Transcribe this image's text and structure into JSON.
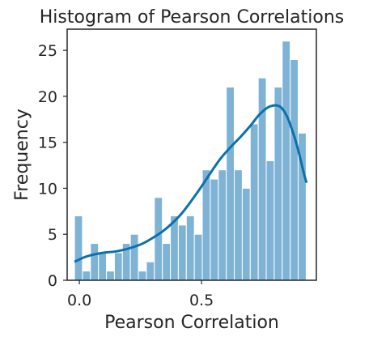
{
  "chart_data": {
    "type": "bar",
    "title": "Histogram of Pearson Correlations",
    "xlabel": "Pearson Correlation",
    "ylabel": "Frequency",
    "xlim": [
      -0.05,
      0.97
    ],
    "ylim": [
      0,
      27.3
    ],
    "xticks": [
      0.0,
      0.5
    ],
    "xtick_labels": [
      "0.0",
      "0.5"
    ],
    "yticks": [
      0,
      5,
      10,
      15,
      20,
      25
    ],
    "ytick_labels": [
      "0",
      "5",
      "10",
      "15",
      "20",
      "25"
    ],
    "bins": {
      "start": -0.02,
      "width": 0.0327,
      "values": [
        7,
        1,
        4,
        3,
        1,
        3,
        4,
        5,
        1,
        2,
        9,
        4,
        7,
        6,
        7,
        5,
        12,
        11,
        12,
        21,
        12,
        10,
        17,
        22,
        13,
        21,
        26,
        24,
        16
      ]
    },
    "kde": {
      "x": [
        -0.02,
        0.02,
        0.06,
        0.1,
        0.14,
        0.18,
        0.22,
        0.26,
        0.3,
        0.34,
        0.38,
        0.42,
        0.46,
        0.5,
        0.54,
        0.58,
        0.62,
        0.66,
        0.7,
        0.74,
        0.78,
        0.82,
        0.85,
        0.88,
        0.9,
        0.92,
        0.93
      ],
      "y": [
        2.0,
        2.5,
        2.8,
        3.0,
        3.1,
        3.3,
        3.6,
        4.0,
        4.6,
        5.3,
        6.2,
        7.3,
        8.7,
        10.2,
        11.8,
        13.3,
        14.5,
        15.6,
        16.8,
        18.1,
        18.9,
        18.9,
        17.8,
        15.6,
        13.7,
        11.5,
        10.6
      ]
    },
    "grid": false,
    "legend": "none",
    "colors": {
      "bar": "#7fb3d6",
      "kde": "#0a71ad"
    }
  }
}
